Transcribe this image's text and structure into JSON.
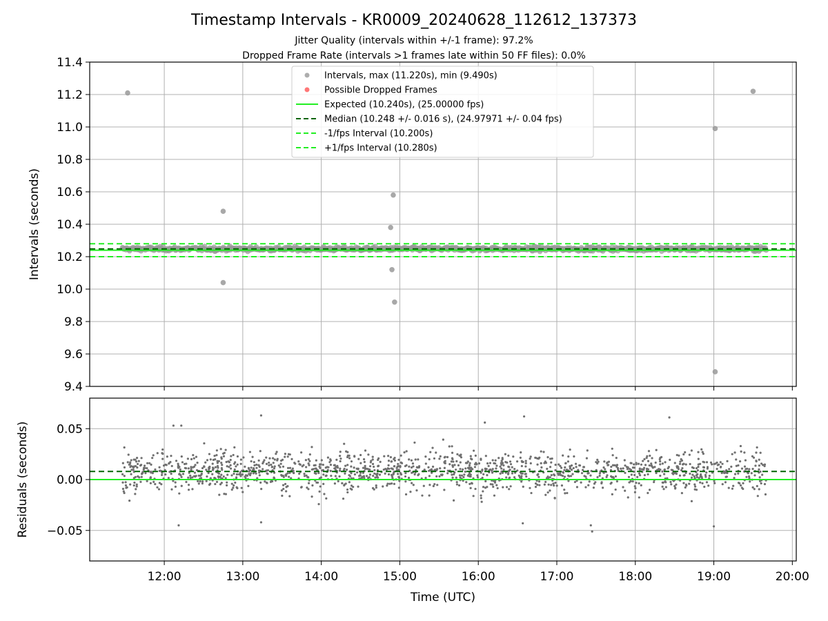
{
  "chart_data": [
    {
      "type": "scatter",
      "title": "Timestamp Intervals - KR0009_20240628_112612_137373",
      "subtitle_lines": [
        "Jitter Quality (intervals within +/-1 frame): 97.2%",
        "Dropped Frame Rate (intervals >1 frames late within 50 FF files): 0.0%"
      ],
      "ylabel": "Intervals (seconds)",
      "xlim_hours": [
        11.05,
        20.05
      ],
      "ylim": [
        9.4,
        11.4
      ],
      "yticks": [
        9.4,
        9.6,
        9.8,
        10.0,
        10.2,
        10.4,
        10.6,
        10.8,
        11.0,
        11.2,
        11.4
      ],
      "ytick_labels": [
        "9.4",
        "9.6",
        "9.8",
        "10.0",
        "10.2",
        "10.4",
        "10.6",
        "10.8",
        "11.0",
        "11.2",
        "11.4"
      ],
      "grid": true,
      "legend_position": "upper center",
      "legend": [
        {
          "label": "Intervals, max (11.220s), min (9.490s)",
          "marker": "dot",
          "color": "#999999"
        },
        {
          "label": "Possible Dropped Frames",
          "marker": "dot",
          "color": "#ff5555"
        },
        {
          "label": "Expected (10.240s), (25.00000 fps)",
          "marker": "line",
          "color": "#22ee22",
          "dash": "solid"
        },
        {
          "label": "Median (10.248 +/- 0.016 s), (24.97971 +/- 0.04 fps)",
          "marker": "line",
          "color": "#006400",
          "dash": "dashed"
        },
        {
          "label": "-1/fps Interval (10.200s)",
          "marker": "line",
          "color": "#22ee22",
          "dash": "dashed"
        },
        {
          "label": "+1/fps Interval (10.280s)",
          "marker": "line",
          "color": "#22ee22",
          "dash": "dashed"
        }
      ],
      "reference_lines": [
        {
          "name": "expected",
          "y": 10.24,
          "color": "#22ee22",
          "dash": "solid"
        },
        {
          "name": "median",
          "y": 10.248,
          "color": "#006400",
          "dash": "dashed"
        },
        {
          "name": "minus_one_fps",
          "y": 10.2,
          "color": "#22ee22",
          "dash": "dashed"
        },
        {
          "name": "plus_one_fps",
          "y": 10.28,
          "color": "#22ee22",
          "dash": "dashed"
        }
      ],
      "series": [
        {
          "name": "Intervals",
          "color": "#999999",
          "band": {
            "x_range": [
              "11:28",
              "19:40"
            ],
            "y_min": 10.19,
            "y_max": 10.3
          },
          "points": [
            {
              "x": "11:32",
              "y": 11.21
            },
            {
              "x": "12:45",
              "y": 10.48
            },
            {
              "x": "12:45",
              "y": 10.04
            },
            {
              "x": "14:55",
              "y": 10.58
            },
            {
              "x": "14:53",
              "y": 10.38
            },
            {
              "x": "14:54",
              "y": 10.12
            },
            {
              "x": "14:56",
              "y": 9.92
            },
            {
              "x": "19:01",
              "y": 10.99
            },
            {
              "x": "19:01",
              "y": 9.49
            },
            {
              "x": "19:30",
              "y": 11.22
            }
          ]
        }
      ]
    },
    {
      "type": "scatter",
      "ylabel": "Residuals (seconds)",
      "xlabel": "Time (UTC)",
      "xlim_hours": [
        11.05,
        20.05
      ],
      "xticks": [
        "12:00",
        "13:00",
        "14:00",
        "15:00",
        "16:00",
        "17:00",
        "18:00",
        "19:00",
        "20:00"
      ],
      "ylim": [
        -0.08,
        0.08
      ],
      "yticks": [
        -0.05,
        0.0,
        0.05
      ],
      "ytick_labels": [
        "−0.05",
        "0.00",
        "0.05"
      ],
      "grid": true,
      "reference_lines": [
        {
          "name": "zero",
          "y": 0.0,
          "color": "#22ee22",
          "dash": "solid"
        },
        {
          "name": "median_residual",
          "y": 0.008,
          "color": "#006400",
          "dash": "dashed"
        }
      ],
      "series": [
        {
          "name": "Residuals",
          "color": "#707070",
          "band": {
            "x_range": [
              "11:28",
              "19:40"
            ],
            "y_min": -0.04,
            "y_max": 0.05
          },
          "points": [
            {
              "x": "12:07",
              "y": 0.053
            },
            {
              "x": "12:13",
              "y": 0.053
            },
            {
              "x": "13:14",
              "y": 0.063
            },
            {
              "x": "16:05",
              "y": 0.056
            },
            {
              "x": "16:35",
              "y": 0.062
            },
            {
              "x": "18:26",
              "y": 0.061
            },
            {
              "x": "12:11",
              "y": -0.045
            },
            {
              "x": "13:14",
              "y": -0.042
            },
            {
              "x": "16:34",
              "y": -0.043
            },
            {
              "x": "17:27",
              "y": -0.051
            },
            {
              "x": "17:26",
              "y": -0.045
            },
            {
              "x": "19:00",
              "y": -0.046
            }
          ]
        }
      ]
    }
  ]
}
